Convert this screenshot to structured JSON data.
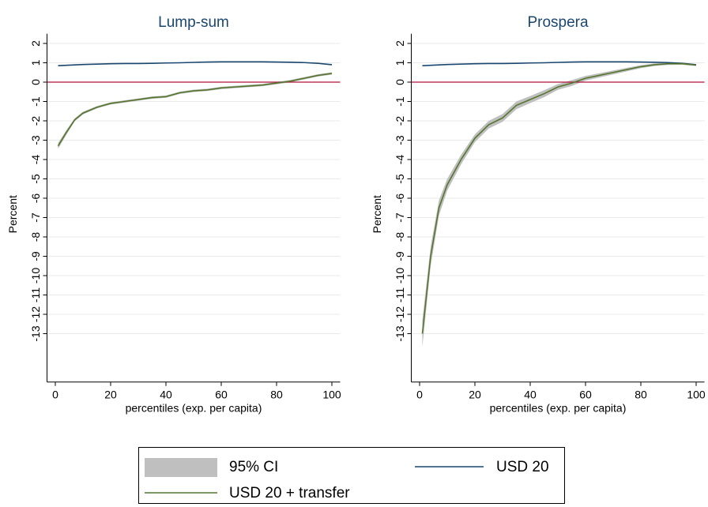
{
  "chart_data": [
    {
      "type": "line",
      "title": "Lump-sum",
      "xlabel": "percentiles (exp. per capita)",
      "ylabel": "Percent",
      "x": [
        1,
        4,
        7,
        10,
        15,
        20,
        25,
        30,
        35,
        40,
        45,
        50,
        55,
        60,
        65,
        70,
        75,
        80,
        85,
        90,
        95,
        100
      ],
      "xlim": [
        -3,
        103
      ],
      "xticks": [
        0,
        20,
        40,
        60,
        80,
        100
      ],
      "ylim": [
        -15.5,
        2.5
      ],
      "yticks": [
        2,
        1,
        0,
        -1,
        -2,
        -3,
        -4,
        -5,
        -6,
        -7,
        -8,
        -9,
        -10,
        -11,
        -12,
        -13
      ],
      "grid": true,
      "hline": 0,
      "hline_color": "#b5123a",
      "series": [
        {
          "name": "95% CI",
          "color": "#bfbfbf",
          "lower": [
            -3.45,
            -2.72,
            -2.03,
            -1.67,
            -1.36,
            -1.16,
            -1.06,
            -0.96,
            -0.86,
            -0.81,
            -0.61,
            -0.51,
            -0.46,
            -0.36,
            -0.31,
            -0.26,
            -0.21,
            -0.11,
            -0.01,
            0.14,
            0.29,
            0.39
          ],
          "upper": [
            -3.15,
            -2.48,
            -1.87,
            -1.53,
            -1.24,
            -1.04,
            -0.94,
            -0.84,
            -0.74,
            -0.69,
            -0.49,
            -0.39,
            -0.34,
            -0.24,
            -0.19,
            -0.14,
            -0.09,
            0.01,
            0.11,
            0.26,
            0.41,
            0.51
          ]
        },
        {
          "name": "USD 20",
          "color": "#1a476f",
          "values": [
            0.85,
            0.87,
            0.89,
            0.91,
            0.93,
            0.95,
            0.96,
            0.96,
            0.97,
            0.99,
            1.0,
            1.02,
            1.04,
            1.05,
            1.05,
            1.05,
            1.05,
            1.04,
            1.03,
            1.01,
            0.97,
            0.9
          ]
        },
        {
          "name": "USD 20 + transfer",
          "color": "#55752f",
          "values": [
            -3.3,
            -2.6,
            -1.95,
            -1.6,
            -1.3,
            -1.1,
            -1.0,
            -0.9,
            -0.8,
            -0.75,
            -0.55,
            -0.45,
            -0.4,
            -0.3,
            -0.25,
            -0.2,
            -0.15,
            -0.05,
            0.05,
            0.2,
            0.35,
            0.45
          ]
        }
      ]
    },
    {
      "type": "line",
      "title": "Prospera",
      "xlabel": "percentiles (exp. per capita)",
      "ylabel": "Percent",
      "x": [
        1,
        4,
        7,
        10,
        15,
        20,
        25,
        30,
        35,
        40,
        45,
        50,
        55,
        60,
        65,
        70,
        75,
        80,
        85,
        90,
        95,
        100
      ],
      "xlim": [
        -3,
        103
      ],
      "xticks": [
        0,
        20,
        40,
        60,
        80,
        100
      ],
      "ylim": [
        -15.5,
        2.5
      ],
      "yticks": [
        2,
        1,
        0,
        -1,
        -2,
        -3,
        -4,
        -5,
        -6,
        -7,
        -8,
        -9,
        -10,
        -11,
        -12,
        -13
      ],
      "grid": true,
      "hline": 0,
      "hline_color": "#b5123a",
      "series": [
        {
          "name": "95% CI",
          "color": "#bfbfbf",
          "lower": [
            -13.7,
            -9.5,
            -6.9,
            -5.6,
            -4.25,
            -3.1,
            -2.4,
            -2.05,
            -1.4,
            -1.08,
            -0.78,
            -0.4,
            -0.2,
            0.08,
            0.24,
            0.4,
            0.56,
            0.72,
            0.83,
            0.89,
            0.9,
            0.83
          ],
          "upper": [
            -12.3,
            -8.5,
            -6.1,
            -5.0,
            -3.75,
            -2.7,
            -2.0,
            -1.65,
            -1.0,
            -0.72,
            -0.42,
            -0.1,
            0.1,
            0.32,
            0.46,
            0.6,
            0.74,
            0.88,
            0.97,
            1.01,
            1.0,
            0.93
          ]
        },
        {
          "name": "USD 20",
          "color": "#1a476f",
          "values": [
            0.85,
            0.87,
            0.89,
            0.91,
            0.93,
            0.95,
            0.96,
            0.96,
            0.97,
            0.99,
            1.0,
            1.02,
            1.04,
            1.05,
            1.05,
            1.05,
            1.05,
            1.04,
            1.03,
            1.01,
            0.97,
            0.9
          ]
        },
        {
          "name": "USD 20 + transfer",
          "color": "#55752f",
          "values": [
            -13.0,
            -9.0,
            -6.5,
            -5.3,
            -4.0,
            -2.9,
            -2.2,
            -1.85,
            -1.2,
            -0.9,
            -0.6,
            -0.25,
            -0.05,
            0.2,
            0.35,
            0.5,
            0.65,
            0.8,
            0.9,
            0.95,
            0.95,
            0.88
          ]
        }
      ]
    }
  ]
}
